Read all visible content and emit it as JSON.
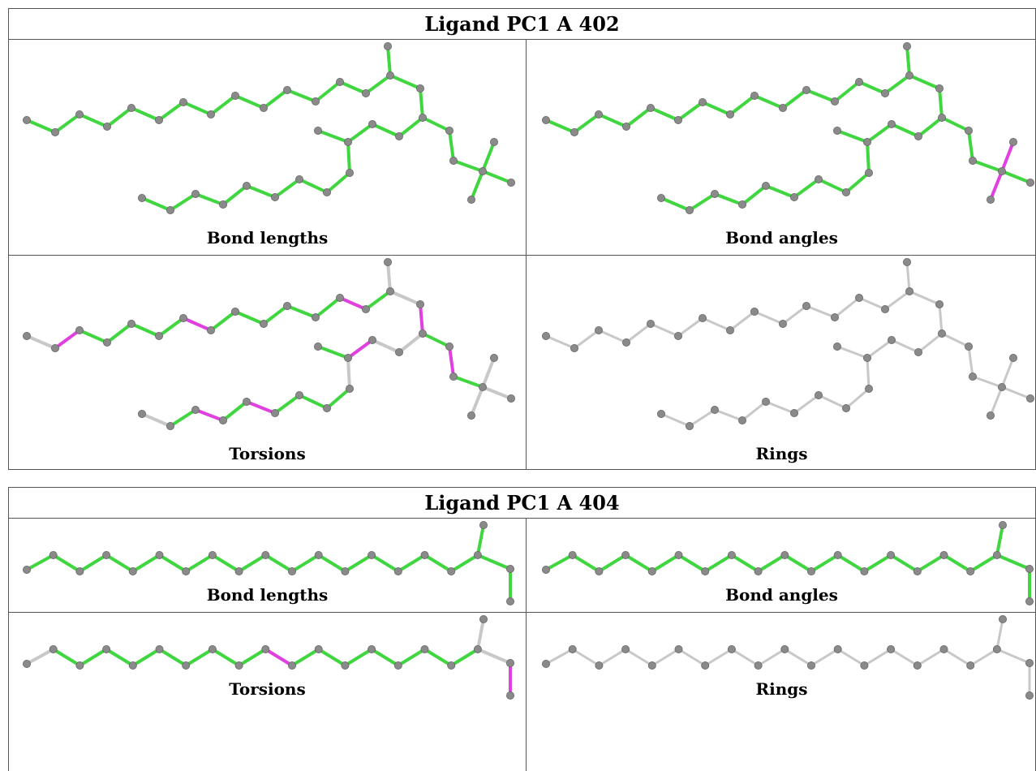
{
  "colors": {
    "ok": "#3fd63f",
    "outlier": "#e040e0",
    "neutral": "#c8c8c8",
    "atom": "#8a8a8a",
    "atom_edge": "#666666"
  },
  "ligands": [
    {
      "title": "Ligand PC1 A 402",
      "panels": [
        {
          "caption": "Bond lengths",
          "mode": "lengths"
        },
        {
          "caption": "Bond angles",
          "mode": "angles"
        },
        {
          "caption": "Torsions",
          "mode": "torsions"
        },
        {
          "caption": "Rings",
          "mode": "rings"
        }
      ]
    },
    {
      "title": "Ligand PC1 A 404",
      "panels": [
        {
          "caption": "Bond lengths",
          "mode": "lengths"
        },
        {
          "caption": "Bond angles",
          "mode": "angles"
        },
        {
          "caption": "Torsions",
          "mode": "torsions"
        },
        {
          "caption": "Rings",
          "mode": "rings"
        }
      ]
    }
  ]
}
